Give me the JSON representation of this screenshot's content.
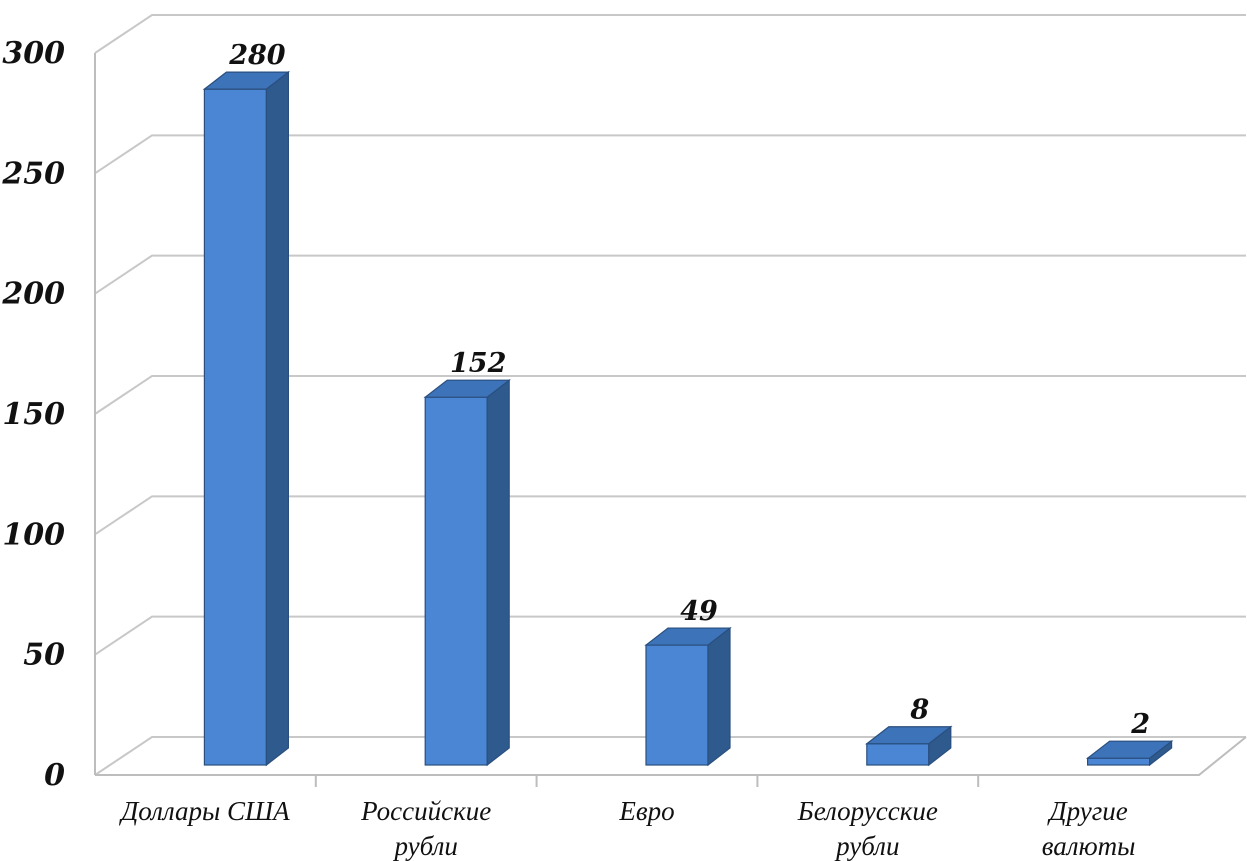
{
  "chart_data": {
    "type": "bar",
    "style": "3d-column",
    "categories": [
      [
        "Доллары США"
      ],
      [
        "Российские",
        "рубли"
      ],
      [
        "Евро"
      ],
      [
        "Белорусские",
        "рубли"
      ],
      [
        "Другие",
        "валюты"
      ]
    ],
    "values": [
      280,
      152,
      49,
      8,
      2
    ],
    "data_labels": [
      "280",
      "152",
      "49",
      "8",
      "2"
    ],
    "ylim": [
      0,
      300
    ],
    "yticks": [
      0,
      50,
      100,
      150,
      200,
      250,
      300
    ],
    "ytick_labels": [
      "0",
      "50",
      "100",
      "150",
      "200",
      "250",
      "300"
    ],
    "grid": true,
    "legend": "none",
    "colors": {
      "bar_front": "#4a86d4",
      "bar_side": "#2f5a8e",
      "bar_top": "#3d73b8",
      "bar_edge": "#2a4f7f",
      "grid": "#c8c8c8"
    }
  }
}
